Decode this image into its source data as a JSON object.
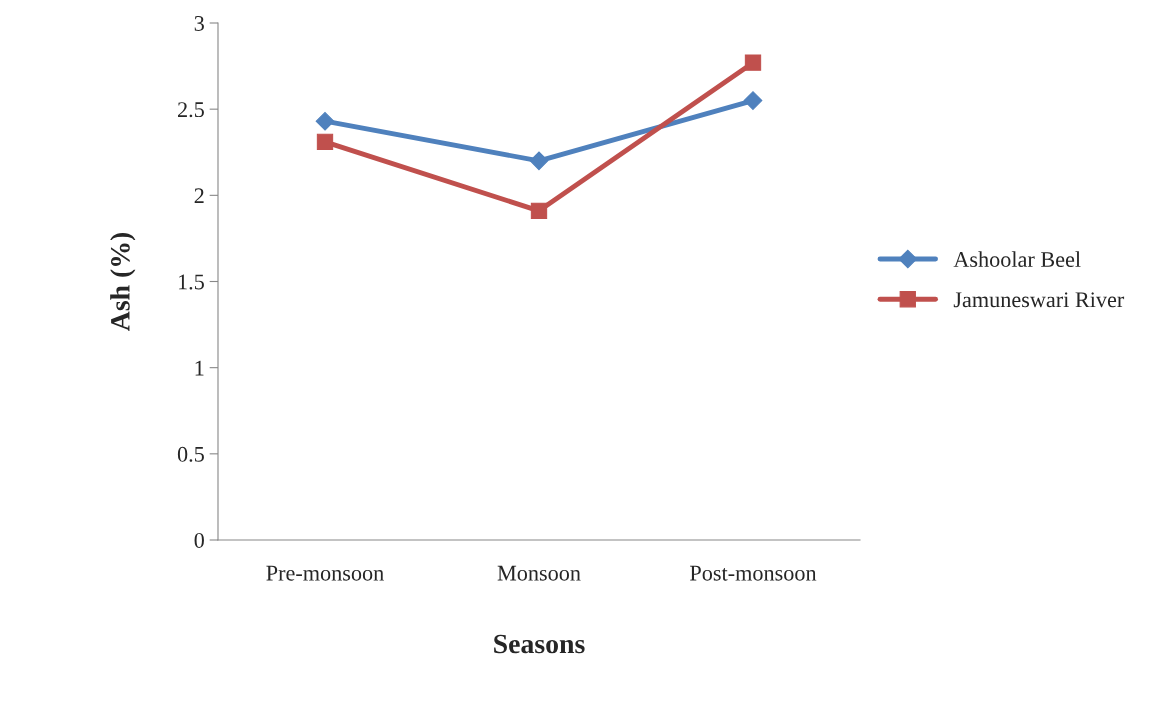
{
  "chart_data": {
    "type": "line",
    "xlabel": "Seasons",
    "ylabel": "Ash (%)",
    "categories": [
      "Pre-monsoon",
      "Monsoon",
      "Post-monsoon"
    ],
    "series": [
      {
        "name": "Ashoolar Beel",
        "color": "#4f81bd",
        "values": [
          2.43,
          2.2,
          2.55
        ],
        "marker": "diamond"
      },
      {
        "name": "Jamuneswari River",
        "color": "#c0504d",
        "values": [
          2.31,
          1.91,
          2.77
        ],
        "marker": "square"
      }
    ],
    "ylim": [
      0,
      3
    ],
    "yticks": [
      0,
      0.5,
      1,
      1.5,
      2,
      2.5,
      3
    ],
    "grid": false,
    "legend": "right"
  }
}
